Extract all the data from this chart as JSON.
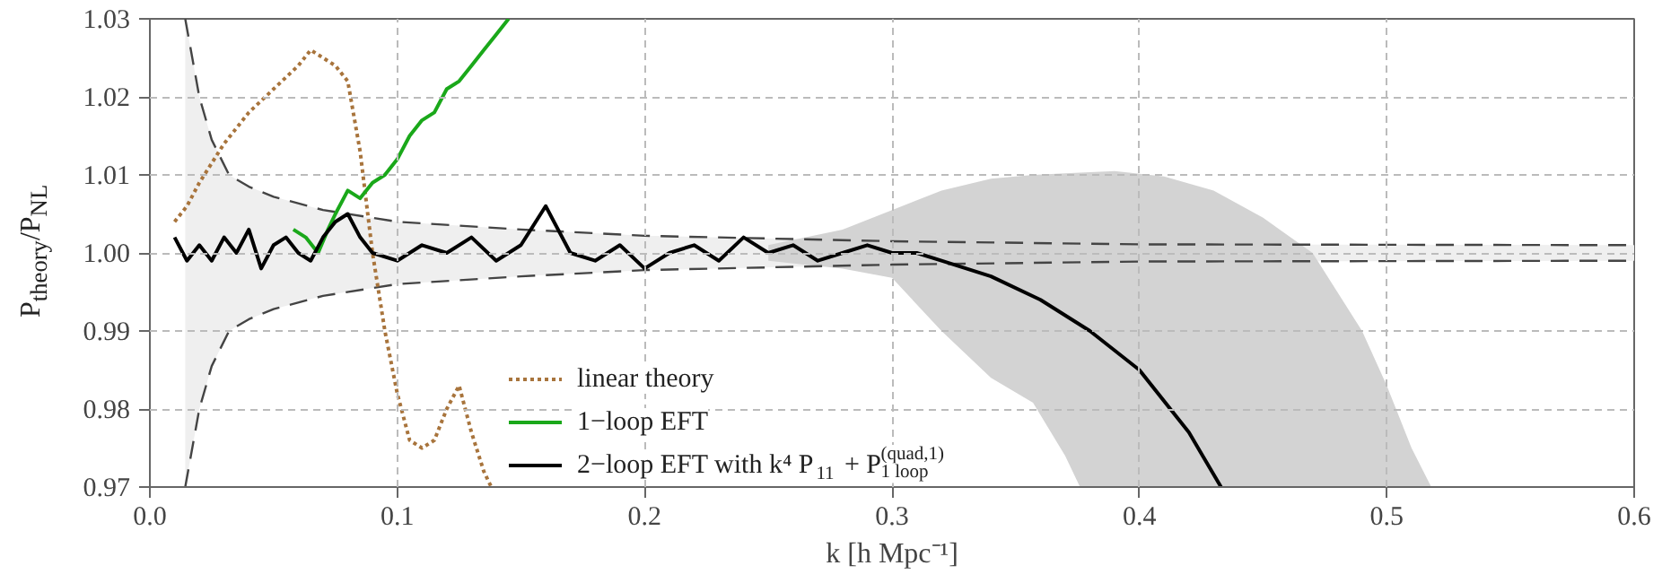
{
  "chart_data": {
    "type": "line",
    "xlabel": "k [h Mpc⁻¹]",
    "ylabel": "P$_{theory}$/P$_{NL}$",
    "xlim": [
      0,
      0.6
    ],
    "ylim": [
      0.97,
      1.03
    ],
    "xticks": [
      {
        "value": 0,
        "label": "0.0"
      },
      0.1,
      0.2,
      0.3,
      0.4,
      0.5,
      0.6
    ],
    "yticks": [
      0.97,
      0.98,
      0.99,
      {
        "value": 1,
        "label": "1.00"
      },
      1.01,
      1.02,
      1.03
    ],
    "grid": true,
    "legend": "bottom",
    "series": [
      {
        "color": "#efefef",
        "x": [
          0.0143,
          0.02,
          0.025,
          0.032,
          0.04,
          0.05,
          0.07,
          0.1,
          0.15,
          0.2,
          0.3,
          0.4,
          0.6
        ],
        "values": [
          null,
          null,
          null,
          null,
          null,
          null,
          null,
          null,
          null,
          null,
          null,
          null,
          null
        ],
        "lower": [
          0.97,
          0.98,
          0.9855,
          0.99,
          0.9915,
          0.9928,
          0.9945,
          0.996,
          0.997,
          0.9978,
          0.9985,
          0.9989,
          0.999
        ],
        "upper": [
          1.03,
          1.02,
          1.0145,
          1.01,
          1.0085,
          1.0072,
          1.0055,
          1.004,
          1.003,
          1.0022,
          1.0015,
          1.0011,
          1.001
        ]
      },
      {
        "color": "#d3d3d3",
        "values": [
          null,
          null,
          null,
          null,
          null,
          null,
          null,
          null,
          null,
          null,
          null,
          null,
          null,
          null,
          null,
          null,
          null,
          null
        ],
        "x": [
          0.25,
          0.28,
          0.3,
          0.32,
          0.34,
          0.357,
          0.37,
          0.376,
          0.39,
          0.41,
          0.43,
          0.45,
          0.47,
          0.48,
          0.49,
          0.5,
          0.51,
          0.518
        ],
        "lower": [
          0.999,
          0.998,
          0.9968,
          0.99,
          0.984,
          0.9808,
          0.974,
          0.97,
          0.97,
          0.97,
          0.97,
          0.97,
          0.97,
          0.97,
          0.97,
          0.97,
          0.97,
          0.97
        ],
        "upper": [
          1.001,
          1.003,
          1.0055,
          1.008,
          1.0095,
          1.01,
          1.0102,
          1.0103,
          1.0105,
          1.0098,
          1.008,
          1.0045,
          1.0,
          0.995,
          0.99,
          0.983,
          0.975,
          0.97
        ]
      },
      {
        "color": "#444444",
        "line_style": "dashed",
        "x": [
          0.0143,
          0.02,
          0.025,
          0.032,
          0.04,
          0.05,
          0.07,
          0.1,
          0.15,
          0.2,
          0.3,
          0.4,
          0.6
        ],
        "values": [
          1.03,
          1.02,
          1.0145,
          1.01,
          1.0085,
          1.0072,
          1.0055,
          1.004,
          1.003,
          1.0022,
          1.0015,
          1.0011,
          1.001
        ]
      },
      {
        "color": "#444444",
        "line_style": "dashed",
        "x": [
          0.0143,
          0.02,
          0.025,
          0.032,
          0.04,
          0.05,
          0.07,
          0.1,
          0.15,
          0.2,
          0.3,
          0.4,
          0.6
        ],
        "values": [
          0.97,
          0.98,
          0.9855,
          0.99,
          0.9915,
          0.9928,
          0.9945,
          0.996,
          0.997,
          0.9978,
          0.9985,
          0.9989,
          0.999
        ]
      },
      {
        "name": "linear theory",
        "color": "#a8743c",
        "line_style": "dotted",
        "x": [
          0.01,
          0.015,
          0.02,
          0.03,
          0.04,
          0.05,
          0.06,
          0.065,
          0.07,
          0.075,
          0.08,
          0.085,
          0.09,
          0.095,
          0.1,
          0.105,
          0.11,
          0.115,
          0.12,
          0.125,
          0.13,
          0.135,
          0.138
        ],
        "values": [
          1.004,
          1.006,
          1.009,
          1.014,
          1.018,
          1.021,
          1.024,
          1.026,
          1.025,
          1.024,
          1.022,
          1.013,
          1.0,
          0.99,
          0.982,
          0.976,
          0.975,
          0.976,
          0.98,
          0.983,
          0.977,
          0.972,
          0.97
        ]
      },
      {
        "name": "1−loop EFT",
        "color": "#1aa81a",
        "x": [
          0.058,
          0.063,
          0.068,
          0.072,
          0.075,
          0.08,
          0.085,
          0.09,
          0.095,
          0.1,
          0.105,
          0.11,
          0.115,
          0.12,
          0.125,
          0.13,
          0.135,
          0.14,
          0.145
        ],
        "values": [
          1.003,
          1.002,
          1.0,
          1.003,
          1.005,
          1.008,
          1.007,
          1.009,
          1.01,
          1.012,
          1.015,
          1.017,
          1.018,
          1.021,
          1.022,
          1.024,
          1.026,
          1.028,
          1.03
        ]
      },
      {
        "name": "2−loop EFT with k⁴ P$_{11}$ + P$^{(quad,1)}$$_{1 loop}$",
        "color": "#000000",
        "x": [
          0.01,
          0.015,
          0.02,
          0.025,
          0.03,
          0.035,
          0.04,
          0.045,
          0.05,
          0.055,
          0.06,
          0.065,
          0.07,
          0.075,
          0.08,
          0.085,
          0.09,
          0.1,
          0.11,
          0.12,
          0.13,
          0.14,
          0.15,
          0.16,
          0.17,
          0.18,
          0.19,
          0.2,
          0.21,
          0.22,
          0.23,
          0.24,
          0.25,
          0.26,
          0.27,
          0.28,
          0.29,
          0.3,
          0.31,
          0.32,
          0.34,
          0.36,
          0.38,
          0.4,
          0.42,
          0.433
        ],
        "values": [
          1.002,
          0.999,
          1.001,
          0.999,
          1.002,
          1.0,
          1.003,
          0.998,
          1.001,
          1.002,
          1.0,
          0.999,
          1.002,
          1.004,
          1.005,
          1.002,
          1.0,
          0.999,
          1.001,
          1.0,
          1.002,
          0.999,
          1.001,
          1.006,
          1.0,
          0.999,
          1.001,
          0.998,
          1.0,
          1.001,
          0.999,
          1.002,
          1.0,
          1.001,
          0.999,
          1.0,
          1.001,
          1.0,
          1.0,
          0.999,
          0.997,
          0.994,
          0.99,
          0.985,
          0.977,
          0.97
        ]
      }
    ]
  }
}
